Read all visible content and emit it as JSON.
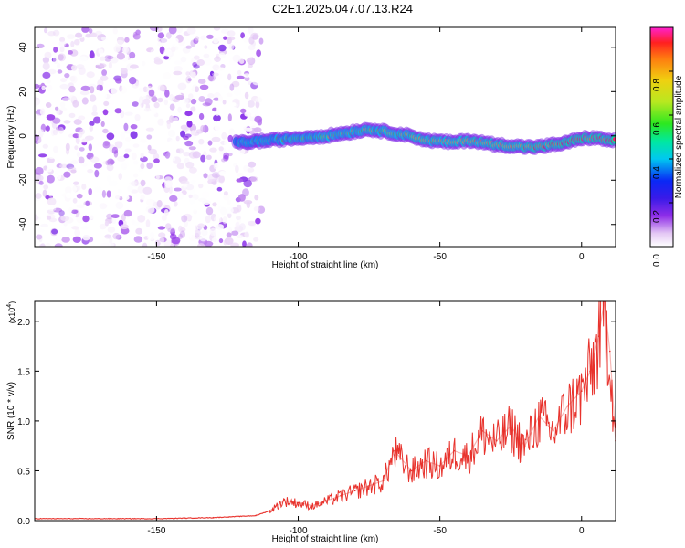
{
  "figure_title": "C2E1.2025.047.07.13.R24",
  "chart_data": [
    {
      "type": "heatmap",
      "title": "",
      "xlabel": "Height of straight line (km)",
      "ylabel": "Frequency (Hz)",
      "xlim": [
        -193,
        12
      ],
      "ylim": [
        -50,
        49
      ],
      "xticks": [
        -150,
        -100,
        -50,
        0
      ],
      "yticks": [
        -40,
        -20,
        0,
        20,
        40
      ],
      "colorbar": {
        "label": "Normalized spectral amplitude",
        "range": [
          0,
          1
        ],
        "ticks": [
          0.0,
          0.2,
          0.4,
          0.6,
          0.8
        ],
        "colors": [
          "#ffffff",
          "#e4c8f4",
          "#8f2ee8",
          "#3a1ae8",
          "#0a28f5",
          "#00c8f0",
          "#00e8a0",
          "#2ce820",
          "#b8e820",
          "#f0d010",
          "#ff7a10",
          "#ff2020",
          "#ff20d0"
        ]
      },
      "signal_ridge": {
        "x": [
          -120,
          -110,
          -100,
          -90,
          -80,
          -75,
          -70,
          -60,
          -55,
          -45,
          -40,
          -30,
          -20,
          -15,
          -10,
          -5,
          0,
          5,
          10
        ],
        "frequency": [
          -3,
          -2,
          -1,
          0,
          2,
          3,
          2,
          0,
          -2,
          -3,
          -2,
          -4,
          -5,
          -5,
          -4,
          -3,
          -1,
          -1,
          -2
        ]
      }
    },
    {
      "type": "line",
      "title": "",
      "xlabel": "Height of straight line (km)",
      "ylabel": "SNR (10 * v/v)",
      "scale_note": "(x10",
      "scale_exponent": "4",
      "xlim": [
        -193,
        12
      ],
      "ylim": [
        0,
        2.2
      ],
      "xticks": [
        -150,
        -100,
        -50,
        0
      ],
      "yticks": [
        0.0,
        0.5,
        1.0,
        1.5,
        2.0
      ],
      "series": [
        {
          "color": "#e8322c",
          "x": [
            -193,
            -170,
            -150,
            -130,
            -115,
            -110,
            -105,
            -100,
            -95,
            -90,
            -85,
            -80,
            -75,
            -70,
            -66,
            -60,
            -55,
            -50,
            -45,
            -40,
            -35,
            -30,
            -25,
            -20,
            -15,
            -10,
            -5,
            0,
            3,
            6,
            8,
            10,
            12
          ],
          "values": [
            0.02,
            0.02,
            0.02,
            0.03,
            0.05,
            0.1,
            0.2,
            0.18,
            0.15,
            0.2,
            0.25,
            0.3,
            0.35,
            0.4,
            0.7,
            0.5,
            0.6,
            0.55,
            0.7,
            0.65,
            0.9,
            0.8,
            0.95,
            0.75,
            1.05,
            0.9,
            1.15,
            1.3,
            1.5,
            1.85,
            2.2,
            1.7,
            0.8
          ]
        }
      ]
    }
  ]
}
